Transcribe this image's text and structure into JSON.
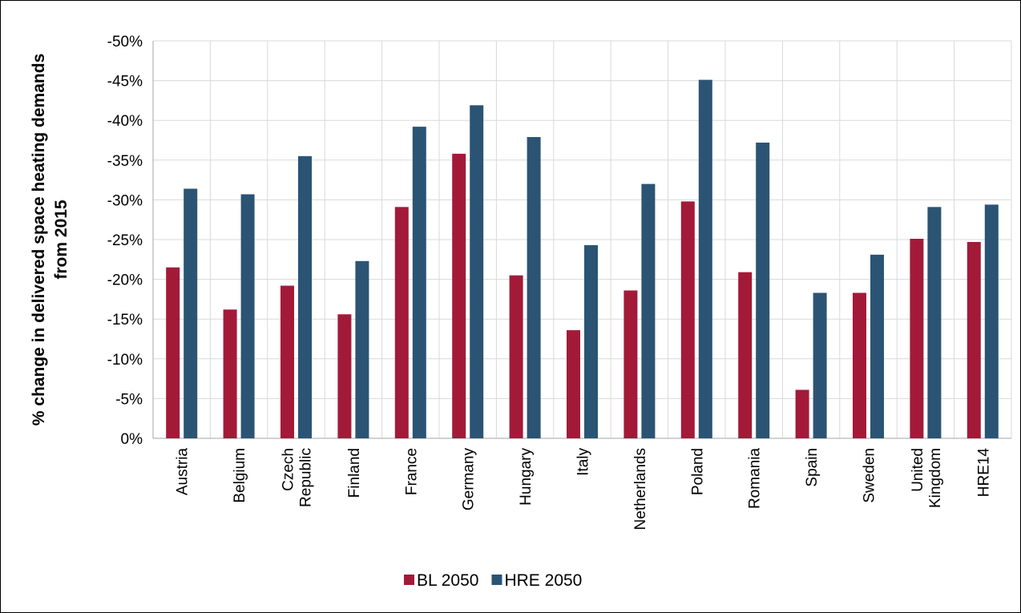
{
  "chart_data": {
    "type": "bar",
    "title": "",
    "xlabel": "",
    "ylabel": "% change in delivered space heating demands from 2015",
    "ylabel_lines": [
      "% change in delivered space heating demands",
      "from 2015"
    ],
    "ylim": [
      0,
      -50
    ],
    "y_ticks": [
      "-50%",
      "-45%",
      "-40%",
      "-35%",
      "-30%",
      "-25%",
      "-20%",
      "-15%",
      "-10%",
      "-5%",
      "0%"
    ],
    "grid": true,
    "legend_position": "bottom",
    "categories": [
      [
        "Austria"
      ],
      [
        "Belgium"
      ],
      [
        "Czech",
        "Republic"
      ],
      [
        "Finland"
      ],
      [
        "France"
      ],
      [
        "Germany"
      ],
      [
        "Hungary"
      ],
      [
        "Italy"
      ],
      [
        "Netherlands"
      ],
      [
        "Poland"
      ],
      [
        "Romania"
      ],
      [
        "Spain"
      ],
      [
        "Sweden"
      ],
      [
        "United",
        "Kingdom"
      ],
      [
        "HRE14"
      ]
    ],
    "series": [
      {
        "name": "BL 2050",
        "color": "#A31A39",
        "values": [
          -21.5,
          -16.2,
          -19.2,
          -15.6,
          -29.1,
          -35.8,
          -20.5,
          -13.6,
          -18.6,
          -29.8,
          -20.9,
          -6.1,
          -18.3,
          -25.1,
          -24.7
        ]
      },
      {
        "name": "HRE 2050",
        "color": "#2B5474",
        "values": [
          -31.4,
          -30.7,
          -35.5,
          -22.3,
          -39.2,
          -41.9,
          -37.9,
          -24.3,
          -32.0,
          -45.1,
          -37.2,
          -18.3,
          -23.1,
          -29.1,
          -29.4
        ]
      }
    ],
    "grid_color": "#D9D9D9",
    "axis_color": "#A6A6A6"
  }
}
